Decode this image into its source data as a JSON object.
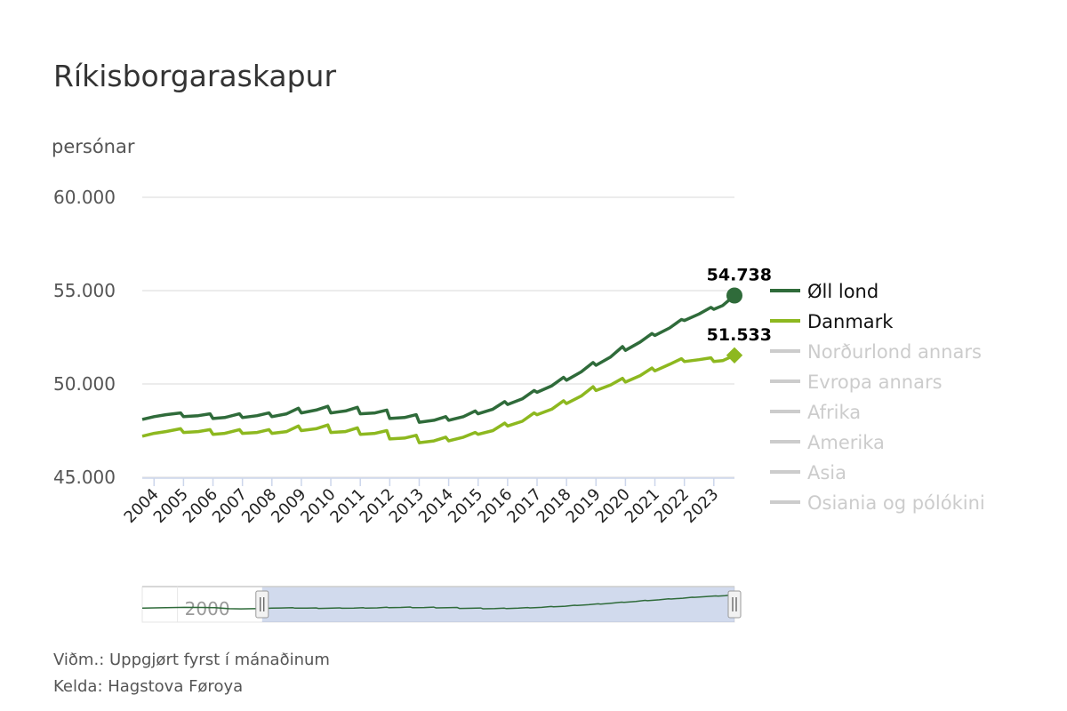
{
  "chart_data": {
    "type": "line",
    "title": "Ríkisborgaraskapur",
    "ylabel": "persónar",
    "ylim": [
      45000,
      60000
    ],
    "yticks": [
      {
        "value": 45000,
        "label": "45.000"
      },
      {
        "value": 50000,
        "label": "50.000"
      },
      {
        "value": 55000,
        "label": "55.000"
      },
      {
        "value": 60000,
        "label": "60.000"
      }
    ],
    "xlim": [
      2003.6,
      2023.7
    ],
    "xticks": [
      "2004",
      "2005",
      "2006",
      "2007",
      "2008",
      "2009",
      "2010",
      "2011",
      "2012",
      "2013",
      "2014",
      "2015",
      "2016",
      "2017",
      "2018",
      "2019",
      "2020",
      "2021",
      "2022",
      "2023"
    ],
    "series": [
      {
        "name": "Øll lond",
        "color": "#2f6b3a",
        "visible": true,
        "end_label": "54.738",
        "end_marker": "circle",
        "points": [
          [
            2003.6,
            48100
          ],
          [
            2004.0,
            48250
          ],
          [
            2004.4,
            48350
          ],
          [
            2004.9,
            48450
          ],
          [
            2005.0,
            48250
          ],
          [
            2005.5,
            48300
          ],
          [
            2005.9,
            48400
          ],
          [
            2006.0,
            48150
          ],
          [
            2006.4,
            48200
          ],
          [
            2006.9,
            48400
          ],
          [
            2007.0,
            48200
          ],
          [
            2007.5,
            48300
          ],
          [
            2007.9,
            48450
          ],
          [
            2008.0,
            48250
          ],
          [
            2008.5,
            48400
          ],
          [
            2008.9,
            48700
          ],
          [
            2009.0,
            48450
          ],
          [
            2009.5,
            48600
          ],
          [
            2009.9,
            48800
          ],
          [
            2010.0,
            48450
          ],
          [
            2010.5,
            48550
          ],
          [
            2010.9,
            48750
          ],
          [
            2011.0,
            48400
          ],
          [
            2011.5,
            48450
          ],
          [
            2011.9,
            48600
          ],
          [
            2012.0,
            48150
          ],
          [
            2012.5,
            48200
          ],
          [
            2012.9,
            48350
          ],
          [
            2013.0,
            47950
          ],
          [
            2013.5,
            48050
          ],
          [
            2013.9,
            48250
          ],
          [
            2014.0,
            48050
          ],
          [
            2014.5,
            48250
          ],
          [
            2014.9,
            48550
          ],
          [
            2015.0,
            48400
          ],
          [
            2015.5,
            48650
          ],
          [
            2015.9,
            49050
          ],
          [
            2016.0,
            48900
          ],
          [
            2016.5,
            49200
          ],
          [
            2016.9,
            49650
          ],
          [
            2017.0,
            49550
          ],
          [
            2017.5,
            49900
          ],
          [
            2017.9,
            50350
          ],
          [
            2018.0,
            50200
          ],
          [
            2018.5,
            50650
          ],
          [
            2018.9,
            51150
          ],
          [
            2019.0,
            51000
          ],
          [
            2019.5,
            51450
          ],
          [
            2019.9,
            52000
          ],
          [
            2020.0,
            51800
          ],
          [
            2020.5,
            52250
          ],
          [
            2020.9,
            52700
          ],
          [
            2021.0,
            52600
          ],
          [
            2021.5,
            53000
          ],
          [
            2021.9,
            53450
          ],
          [
            2022.0,
            53400
          ],
          [
            2022.5,
            53750
          ],
          [
            2022.9,
            54100
          ],
          [
            2023.0,
            54000
          ],
          [
            2023.3,
            54200
          ],
          [
            2023.7,
            54738
          ]
        ]
      },
      {
        "name": "Danmark",
        "color": "#8db81f",
        "visible": true,
        "end_label": "51.533",
        "end_marker": "diamond",
        "points": [
          [
            2003.6,
            47200
          ],
          [
            2004.0,
            47350
          ],
          [
            2004.4,
            47450
          ],
          [
            2004.9,
            47600
          ],
          [
            2005.0,
            47400
          ],
          [
            2005.5,
            47450
          ],
          [
            2005.9,
            47550
          ],
          [
            2006.0,
            47300
          ],
          [
            2006.4,
            47350
          ],
          [
            2006.9,
            47550
          ],
          [
            2007.0,
            47350
          ],
          [
            2007.5,
            47400
          ],
          [
            2007.9,
            47550
          ],
          [
            2008.0,
            47350
          ],
          [
            2008.5,
            47450
          ],
          [
            2008.9,
            47750
          ],
          [
            2009.0,
            47500
          ],
          [
            2009.5,
            47600
          ],
          [
            2009.9,
            47800
          ],
          [
            2010.0,
            47400
          ],
          [
            2010.5,
            47450
          ],
          [
            2010.9,
            47650
          ],
          [
            2011.0,
            47300
          ],
          [
            2011.5,
            47350
          ],
          [
            2011.9,
            47500
          ],
          [
            2012.0,
            47050
          ],
          [
            2012.5,
            47100
          ],
          [
            2012.9,
            47250
          ],
          [
            2013.0,
            46850
          ],
          [
            2013.5,
            46950
          ],
          [
            2013.9,
            47150
          ],
          [
            2014.0,
            46950
          ],
          [
            2014.5,
            47150
          ],
          [
            2014.9,
            47400
          ],
          [
            2015.0,
            47300
          ],
          [
            2015.5,
            47500
          ],
          [
            2015.9,
            47900
          ],
          [
            2016.0,
            47750
          ],
          [
            2016.5,
            48000
          ],
          [
            2016.9,
            48450
          ],
          [
            2017.0,
            48350
          ],
          [
            2017.5,
            48650
          ],
          [
            2017.9,
            49100
          ],
          [
            2018.0,
            48950
          ],
          [
            2018.5,
            49350
          ],
          [
            2018.9,
            49850
          ],
          [
            2019.0,
            49650
          ],
          [
            2019.5,
            49950
          ],
          [
            2019.9,
            50300
          ],
          [
            2020.0,
            50100
          ],
          [
            2020.5,
            50450
          ],
          [
            2020.9,
            50850
          ],
          [
            2021.0,
            50700
          ],
          [
            2021.5,
            51050
          ],
          [
            2021.9,
            51350
          ],
          [
            2022.0,
            51200
          ],
          [
            2022.5,
            51300
          ],
          [
            2022.9,
            51400
          ],
          [
            2023.0,
            51200
          ],
          [
            2023.3,
            51250
          ],
          [
            2023.7,
            51533
          ]
        ]
      },
      {
        "name": "Norðurlond annars",
        "color": "#cccccc",
        "visible": false
      },
      {
        "name": "Evropa annars",
        "color": "#cccccc",
        "visible": false
      },
      {
        "name": "Afrika",
        "color": "#cccccc",
        "visible": false
      },
      {
        "name": "Amerika",
        "color": "#cccccc",
        "visible": false
      },
      {
        "name": "Asia",
        "color": "#cccccc",
        "visible": false
      },
      {
        "name": "Osiania og pólókini",
        "color": "#cccccc",
        "visible": false
      }
    ],
    "navigator": {
      "label": "2000",
      "selected_range": [
        2003.6,
        2023.7
      ]
    },
    "legend_placement": "right",
    "grid": true
  },
  "footer": {
    "note": "Viðm.: Uppgjørt fyrst í mánaðinum",
    "source": "Kelda: Hagstova Føroya"
  }
}
